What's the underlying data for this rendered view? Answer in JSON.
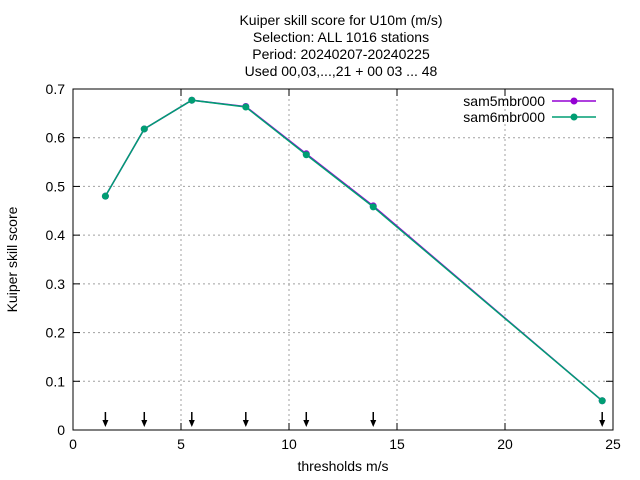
{
  "chart_data": {
    "type": "line",
    "title_lines": [
      "Kuiper skill score  for U10m (m/s)",
      "Selection: ALL   1016 stations",
      "Period: 20240207-20240225",
      "Used 00,03,...,21 + 00 03 ... 48"
    ],
    "xlabel": "thresholds m/s",
    "ylabel": "Kuiper skill score",
    "xlim": [
      0,
      25
    ],
    "ylim": [
      0,
      0.7
    ],
    "xticks": [
      0,
      5,
      10,
      15,
      20,
      25
    ],
    "yticks": [
      0,
      0.1,
      0.2,
      0.3,
      0.4,
      0.5,
      0.6,
      0.7
    ],
    "grid": true,
    "legend_position": "top-right",
    "series": [
      {
        "name": "sam5mbr000",
        "color": "#9400d3",
        "x": [
          1.5,
          3.3,
          5.5,
          8.0,
          10.8,
          13.9,
          24.5
        ],
        "y": [
          0.48,
          0.618,
          0.677,
          0.664,
          0.567,
          0.46,
          0.06
        ]
      },
      {
        "name": "sam6mbr000",
        "color": "#009e73",
        "x": [
          1.5,
          3.3,
          5.5,
          8.0,
          10.8,
          13.9,
          24.5
        ],
        "y": [
          0.48,
          0.618,
          0.677,
          0.663,
          0.565,
          0.458,
          0.06
        ]
      }
    ],
    "arrow_markers_x": [
      1.5,
      3.3,
      5.5,
      8.0,
      10.8,
      13.9,
      24.5
    ]
  }
}
